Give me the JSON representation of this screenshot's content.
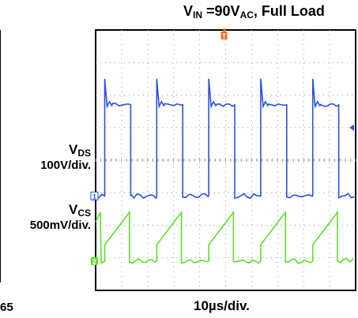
{
  "title": {
    "prefix": "V",
    "sub": "IN",
    "mid": " =90V",
    "sub2": "AC",
    "suffix": ", Full Load"
  },
  "page_number": "65",
  "colors": {
    "vds": "#2a50e8",
    "vcs": "#5de02a",
    "trigger": "#ff6a1a",
    "grid": "#9a9a9a",
    "frame": "#000000"
  },
  "chart_data": {
    "type": "line",
    "title": "VIN =90VAC, Full Load",
    "xlabel": "10µs/div.",
    "grid": true,
    "x_divisions": 10,
    "y_divisions": 8,
    "x_unit_per_div": "10µs",
    "trigger_marker": "T",
    "series": [
      {
        "name": "VDS",
        "channel": "1",
        "scale": "100V/div.",
        "shape": "square",
        "low_div": 0.0,
        "high_div": 2.8,
        "spike_div": 3.6,
        "period_div": 2.0,
        "on_start_div": 0.35,
        "on_width_div": 1.0
      },
      {
        "name": "VCS",
        "channel": "2",
        "scale": "500mV/div.",
        "shape": "ramp",
        "low_div": 0.0,
        "ramp_start_div": 0.5,
        "peak_div": 1.5,
        "period_div": 2.0,
        "ramp_start_at_div": 0.35,
        "ramp_width_div": 0.95
      }
    ]
  },
  "labels": {
    "vds": {
      "name": "V",
      "sub": "DS",
      "scale": "100V/div."
    },
    "vcs": {
      "name": "V",
      "sub": "CS",
      "scale": "500mV/div."
    },
    "xscale": "10µs/div."
  }
}
